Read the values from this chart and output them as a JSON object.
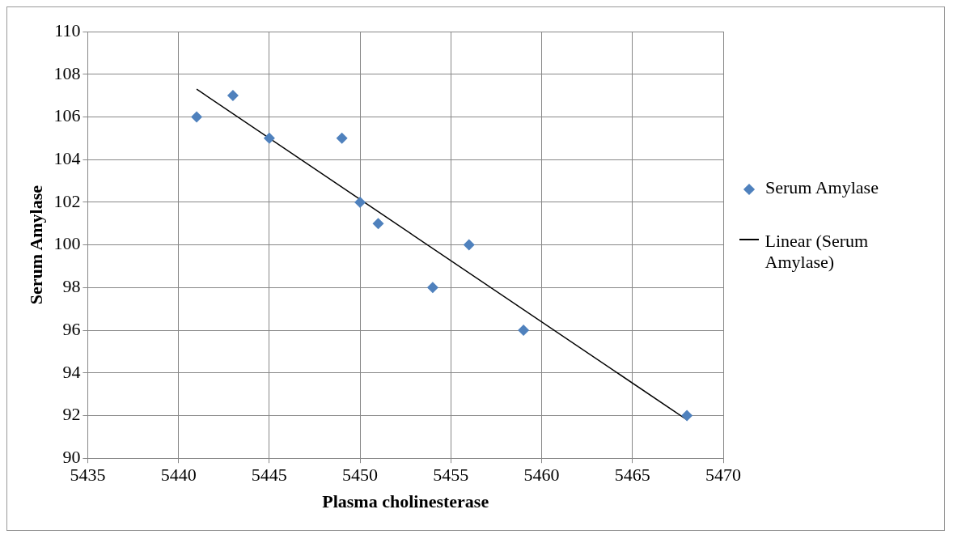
{
  "chart_data": {
    "type": "scatter",
    "xlabel": "Plasma cholinesterase",
    "ylabel": "Serum Amylase",
    "series": [
      {
        "name": "Serum Amylase",
        "color": "#4f81bd",
        "marker": "diamond",
        "x": [
          5441,
          5443,
          5445,
          5449,
          5450,
          5451,
          5454,
          5456,
          5459,
          5468
        ],
        "values": [
          106,
          107,
          105,
          105,
          102,
          101,
          98,
          100,
          96,
          92
        ]
      },
      {
        "name": "Linear (Serum Amylase)",
        "type": "line",
        "color": "#000000",
        "marker": "none",
        "x": [
          5441,
          5468
        ],
        "values": [
          107.3,
          91.8
        ]
      }
    ],
    "xlim": [
      5435,
      5470
    ],
    "xticks": [
      5435,
      5440,
      5445,
      5450,
      5455,
      5460,
      5465,
      5470
    ],
    "ylim": [
      90,
      110
    ],
    "yticks": [
      90,
      92,
      94,
      96,
      98,
      100,
      102,
      104,
      106,
      108,
      110
    ],
    "grid": true,
    "legend": "right"
  }
}
